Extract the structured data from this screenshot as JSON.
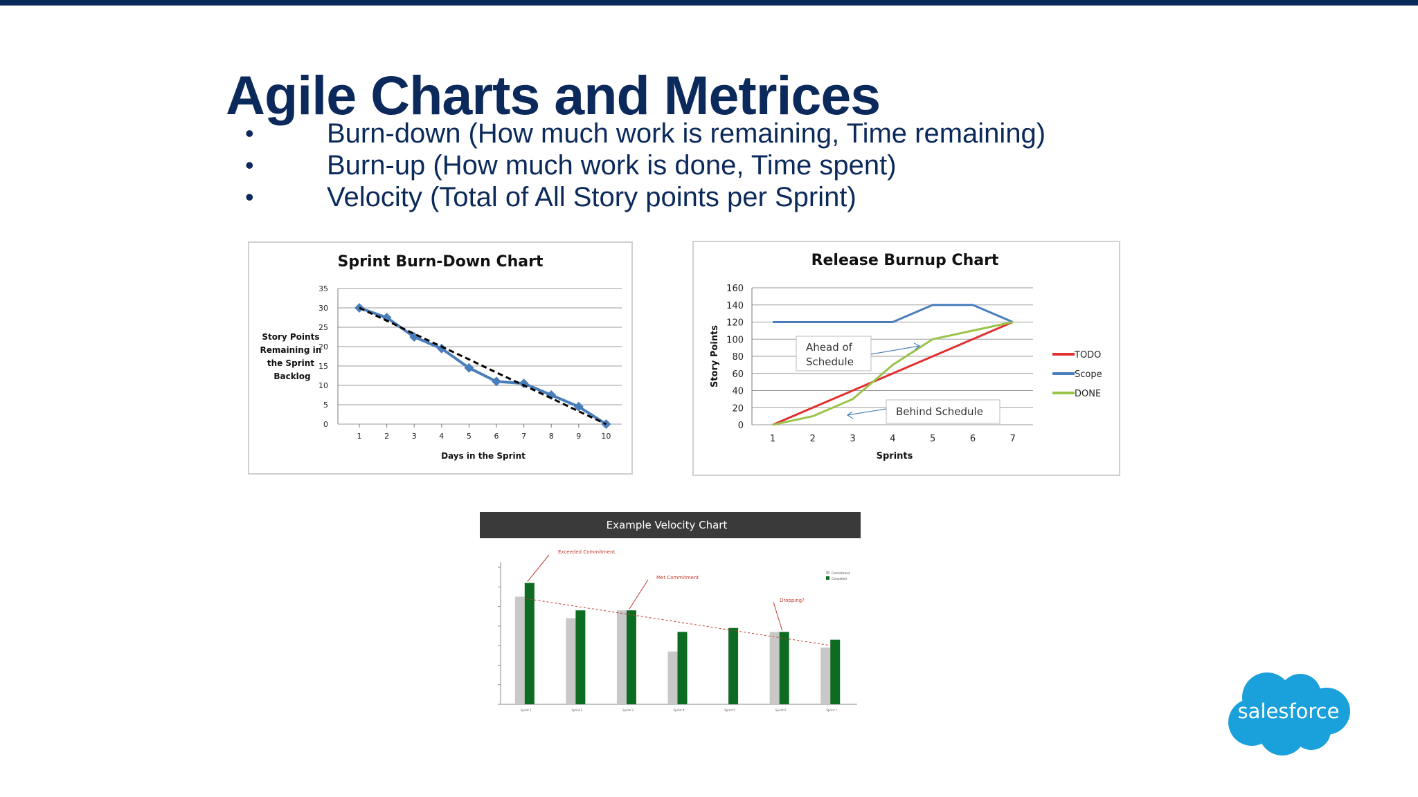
{
  "slide": {
    "title": "Agile Charts and Metrices",
    "bullets": [
      "Burn-down (How much work is remaining, Time remaining)",
      "Burn-up (How much work is done, Time spent)",
      "Velocity (Total of All Story points per Sprint)"
    ],
    "bullet_char": "•",
    "colors": {
      "accent": "#0b2a5b",
      "logo": "#1aa0db"
    }
  },
  "logo": {
    "text": "salesforce",
    "icon": "salesforce-cloud-logo"
  },
  "chart_data": [
    {
      "type": "line",
      "title": "Sprint Burn-Down Chart",
      "xlabel": "Days in the Sprint",
      "ylabel": "Story Points Remaining in the Sprint Backlog",
      "ylabel_lines": [
        "Story Points",
        "Remaining in",
        "the Sprint",
        "Backlog"
      ],
      "x": [
        1,
        2,
        3,
        4,
        5,
        6,
        7,
        8,
        9,
        10
      ],
      "ylim": [
        0,
        35
      ],
      "yticks": [
        0,
        5,
        10,
        15,
        20,
        25,
        30,
        35
      ],
      "grid": true,
      "series": [
        {
          "values": [
            30,
            27.5,
            22.5,
            19.5,
            14.5,
            11,
            10.5,
            7.5,
            4.5,
            0
          ],
          "color": "#4a7ebb",
          "style": "solid-diamond"
        },
        {
          "values": [
            30,
            26.7,
            23.3,
            20,
            16.7,
            13.3,
            10,
            6.7,
            3.3,
            0
          ],
          "color": "#000000",
          "style": "dashed"
        }
      ]
    },
    {
      "type": "line",
      "title": "Release Burnup Chart",
      "xlabel": "Sprints",
      "ylabel": "Story Points",
      "x": [
        1,
        2,
        3,
        4,
        5,
        6,
        7
      ],
      "ylim": [
        0,
        160
      ],
      "yticks": [
        0,
        20,
        40,
        60,
        80,
        100,
        120,
        140,
        160
      ],
      "grid": true,
      "legend": "right",
      "series": [
        {
          "name": "TODO",
          "values": [
            0,
            20,
            40,
            60,
            80,
            100,
            120
          ],
          "color": "#e03030"
        },
        {
          "name": "Scope",
          "values": [
            120,
            120,
            120,
            120,
            140,
            140,
            120
          ],
          "color": "#4a7ebb"
        },
        {
          "name": "DONE",
          "values": [
            0,
            10,
            30,
            70,
            100,
            110,
            120
          ],
          "color": "#9bc34a"
        }
      ],
      "annotations": [
        "Ahead of Schedule",
        "Behind Schedule"
      ],
      "annotation_lines": [
        [
          "Ahead of",
          "Schedule"
        ],
        [
          "Behind Schedule"
        ]
      ]
    },
    {
      "type": "bar",
      "title": "Example Velocity Chart",
      "categories": [
        "Sprint 1",
        "Sprint 2",
        "Sprint 3",
        "Sprint 4",
        "Sprint 5",
        "Sprint 6",
        "Sprint 7"
      ],
      "ylim": [
        0,
        70
      ],
      "series": [
        {
          "name": "Commitment",
          "values": [
            55,
            44,
            48,
            27,
            0,
            37,
            29
          ],
          "color": "#c8c8c8"
        },
        {
          "name": "Completed",
          "values": [
            62,
            48,
            48,
            37,
            39,
            37,
            33
          ],
          "color": "#0d6b22"
        }
      ],
      "trend": [
        54,
        30
      ],
      "annotations": [
        "Exceeded Commitment",
        "Met Commitment",
        "Dropping?"
      ],
      "header_color": "#3a3a3a"
    }
  ]
}
